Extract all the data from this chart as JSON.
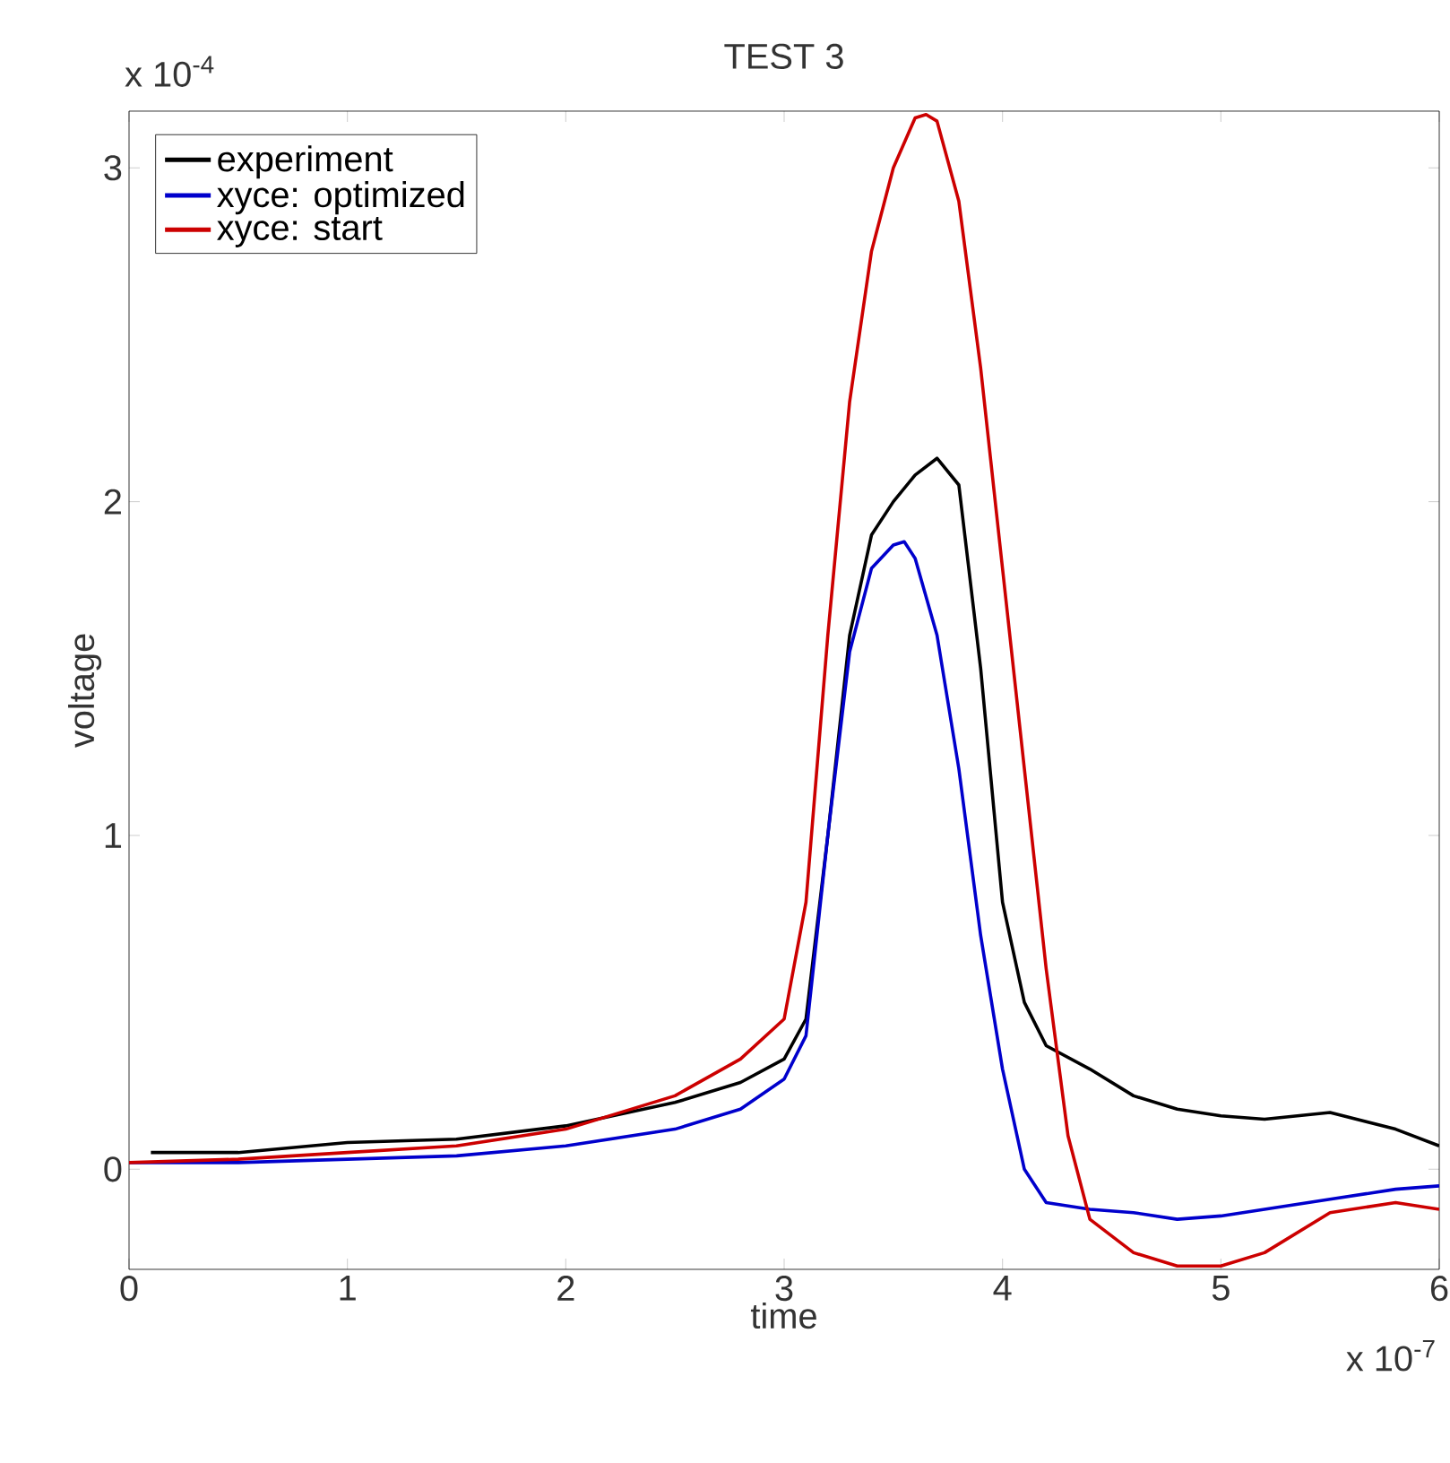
{
  "chart_data": {
    "type": "line",
    "title": "TEST 3",
    "xlabel": "time",
    "ylabel": "voltage",
    "annotations": [
      "x 10$^{-4}$",
      "x 10$^{-7}$"
    ],
    "xlim": [
      0,
      6
    ],
    "ylim": [
      -0.3,
      3.17
    ],
    "xticks": [
      0,
      1,
      2,
      3,
      4,
      5,
      6
    ],
    "yticks": [
      0,
      1,
      2,
      3
    ],
    "legend": "top left",
    "grid": false,
    "marker": "none",
    "line_style": "solid",
    "series": [
      {
        "name": "experiment",
        "color": "#000000",
        "x": [
          0.1,
          0.5,
          1,
          1.5,
          2,
          2.5,
          2.8,
          3.0,
          3.1,
          3.2,
          3.3,
          3.4,
          3.5,
          3.6,
          3.7,
          3.8,
          3.9,
          4.0,
          4.1,
          4.2,
          4.4,
          4.6,
          4.8,
          5.0,
          5.2,
          5.5,
          5.8,
          6.0
        ],
        "values": [
          0.05,
          0.05,
          0.08,
          0.09,
          0.13,
          0.2,
          0.26,
          0.33,
          0.45,
          1.0,
          1.6,
          1.9,
          2.0,
          2.08,
          2.13,
          2.05,
          1.5,
          0.8,
          0.5,
          0.37,
          0.3,
          0.22,
          0.18,
          0.16,
          0.15,
          0.17,
          0.12,
          0.07
        ]
      },
      {
        "name": "xyce: optimized",
        "color": "#0000cc",
        "x": [
          0,
          0.5,
          1,
          1.5,
          2,
          2.5,
          2.8,
          3.0,
          3.1,
          3.2,
          3.3,
          3.4,
          3.5,
          3.55,
          3.6,
          3.7,
          3.8,
          3.9,
          4.0,
          4.1,
          4.2,
          4.4,
          4.6,
          4.8,
          5.0,
          5.5,
          5.8,
          6.0
        ],
        "values": [
          0.02,
          0.02,
          0.03,
          0.04,
          0.07,
          0.12,
          0.18,
          0.27,
          0.4,
          1.0,
          1.55,
          1.8,
          1.87,
          1.88,
          1.83,
          1.6,
          1.2,
          0.7,
          0.3,
          0.0,
          -0.1,
          -0.12,
          -0.13,
          -0.15,
          -0.14,
          -0.09,
          -0.06,
          -0.05
        ]
      },
      {
        "name": "xyce: start",
        "color": "#cc0000",
        "x": [
          0,
          0.5,
          1,
          1.5,
          2,
          2.5,
          2.8,
          3.0,
          3.1,
          3.2,
          3.3,
          3.4,
          3.5,
          3.6,
          3.65,
          3.7,
          3.8,
          3.9,
          4.0,
          4.1,
          4.2,
          4.3,
          4.4,
          4.6,
          4.8,
          5.0,
          5.2,
          5.5,
          5.8,
          6.0
        ],
        "values": [
          0.02,
          0.03,
          0.05,
          0.07,
          0.12,
          0.22,
          0.33,
          0.45,
          0.8,
          1.6,
          2.3,
          2.75,
          3.0,
          3.15,
          3.16,
          3.14,
          2.9,
          2.4,
          1.8,
          1.2,
          0.6,
          0.1,
          -0.15,
          -0.25,
          -0.29,
          -0.29,
          -0.25,
          -0.13,
          -0.1,
          -0.12
        ]
      }
    ]
  }
}
